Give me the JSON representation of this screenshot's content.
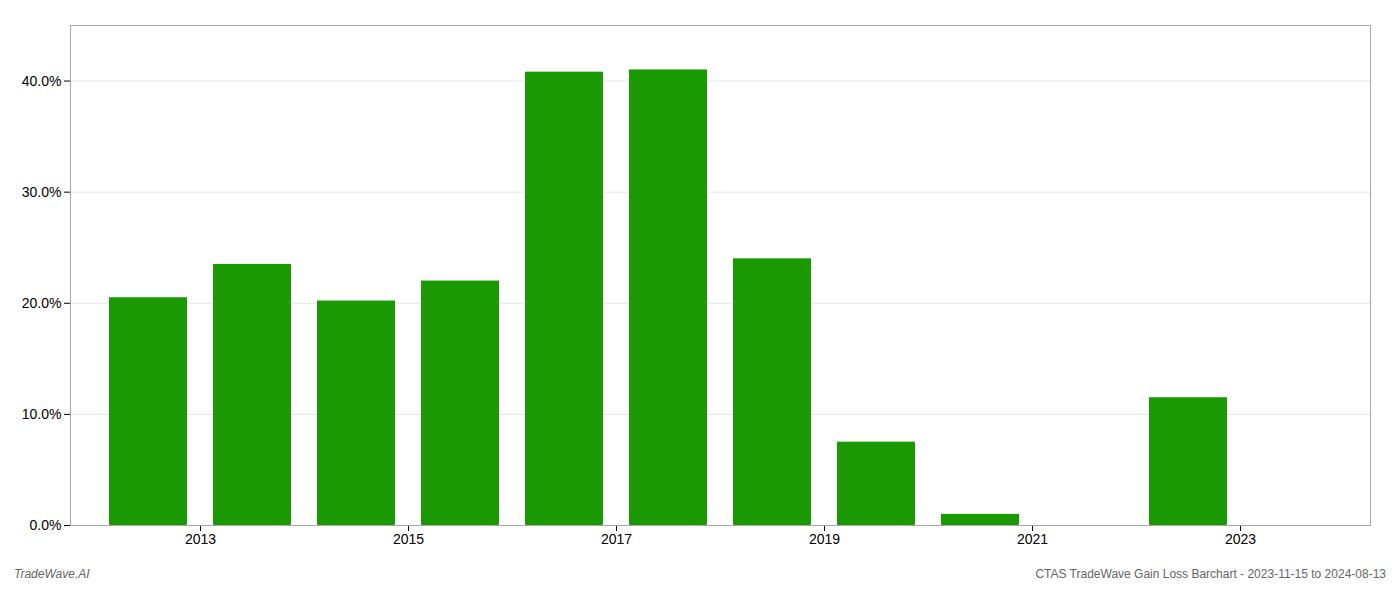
{
  "chart_data": {
    "type": "bar",
    "x": [
      2012,
      2013,
      2014,
      2015,
      2016,
      2017,
      2018,
      2019,
      2020,
      2021,
      2022,
      2023
    ],
    "values": [
      0.205,
      0.235,
      0.202,
      0.22,
      0.408,
      0.41,
      0.24,
      0.075,
      0.01,
      0.0,
      0.115,
      0.0
    ],
    "color": "#1a9900",
    "xlim": [
      2011.25,
      2023.75
    ],
    "xticks": [
      {
        "value": 2012.5,
        "label": "2013"
      },
      {
        "value": 2014.5,
        "label": "2015"
      },
      {
        "value": 2016.5,
        "label": "2017"
      },
      {
        "value": 2018.5,
        "label": "2019"
      },
      {
        "value": 2020.5,
        "label": "2021"
      },
      {
        "value": 2022.5,
        "label": "2023"
      }
    ],
    "ylim": [
      0,
      0.45
    ],
    "yticks": [
      {
        "value": 0.0,
        "label": "0.0%"
      },
      {
        "value": 0.1,
        "label": "10.0%"
      },
      {
        "value": 0.2,
        "label": "20.0%"
      },
      {
        "value": 0.3,
        "label": "30.0%"
      },
      {
        "value": 0.4,
        "label": "40.0%"
      }
    ],
    "grid": "y",
    "annotations": [
      "TradeWave.AI",
      "CTAS TradeWave Gain Loss Barchart - 2023-11-15 to 2024-08-13"
    ]
  }
}
